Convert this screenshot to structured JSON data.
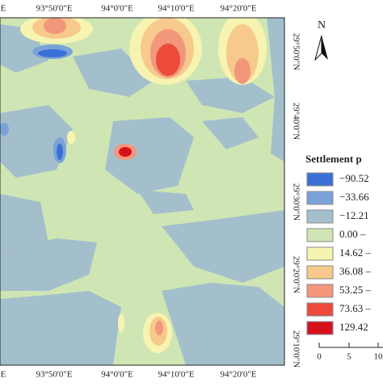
{
  "map": {
    "top_labels": [
      "E",
      "93°50'0\"E",
      "94°0'0\"E",
      "94°10'0\"E",
      "94°20'0\"E"
    ],
    "bottom_labels": [
      "E",
      "93°50'0\"E",
      "94°0'0\"E",
      "94°10'0\"E",
      "94°20'0\"E"
    ],
    "right_labels": [
      "29°50'0\"N",
      "29°40'0\"N",
      "29°30'0\"N",
      "29°20'0\"N",
      "29°10'0\"N"
    ]
  },
  "north": "N",
  "legend": {
    "title": "Settlement p",
    "items": [
      {
        "label": "−90.52",
        "color": "#3a6fd8"
      },
      {
        "label": "−33.66",
        "color": "#7ba2d8"
      },
      {
        "label": "−12.21",
        "color": "#a4bfcc"
      },
      {
        "label": "0.00 –",
        "color": "#cfe6b4"
      },
      {
        "label": "14.62 –",
        "color": "#f6f4b0"
      },
      {
        "label": "36.08 –",
        "color": "#f7c98c"
      },
      {
        "label": "53.25 –",
        "color": "#f3977b"
      },
      {
        "label": "73.63 –",
        "color": "#ec4b3b"
      },
      {
        "label": "129.42",
        "color": "#d5121b"
      }
    ]
  },
  "scale_bar": {
    "labels": [
      "0",
      "5",
      "10"
    ]
  }
}
